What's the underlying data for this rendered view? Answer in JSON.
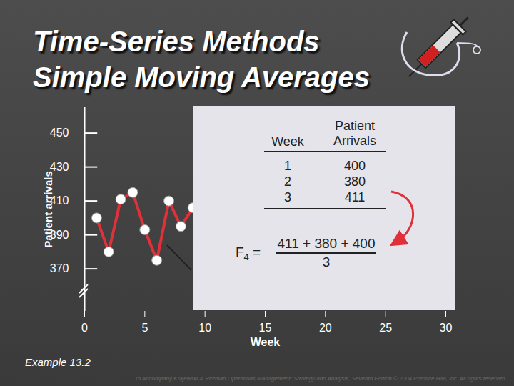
{
  "chart_data": {
    "type": "line",
    "title": "Time-Series Methods",
    "subtitle": "Simple Moving Averages",
    "x_label": "Week",
    "y_label": "Patient arrivals",
    "x": [
      1,
      2,
      3,
      4,
      5,
      6,
      7,
      8,
      9
    ],
    "values": [
      400,
      380,
      411,
      415,
      393,
      375,
      410,
      395,
      406
    ],
    "color": "#e0303a",
    "marker": "circle",
    "xlim": [
      0,
      30
    ],
    "xticks": [
      0,
      5,
      10,
      15,
      20,
      25,
      30
    ],
    "ylim": [
      345,
      465
    ],
    "yticks": [
      370,
      390,
      410,
      430,
      450
    ],
    "caption": "Example 13.2",
    "footer": "To Accompany Krajewski & Ritzman Operations Management: Strategy and Analysis, Seventh Edition © 2004 Prentice Hall, Inc. All rights reserved.",
    "inset_table": {
      "header": [
        "Week",
        "Patient Arrivals"
      ],
      "rows": [
        [
          1,
          400
        ],
        [
          2,
          380
        ],
        [
          3,
          411
        ]
      ]
    },
    "formula": {
      "lhs": "F",
      "subscript": "4",
      "equals": "=",
      "numerator": "411 + 380 + 400",
      "denominator": "3"
    }
  }
}
